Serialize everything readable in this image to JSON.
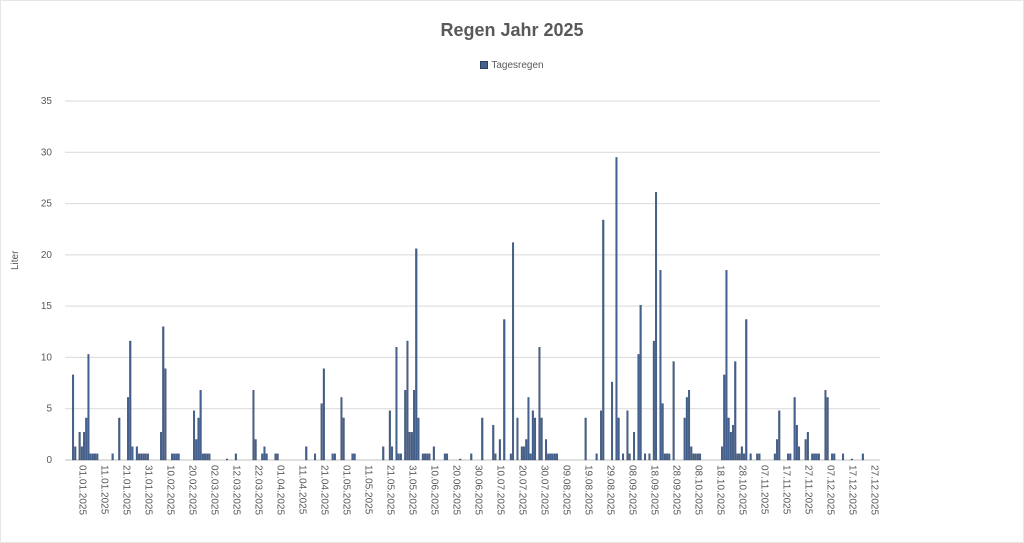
{
  "chart_data": {
    "type": "bar",
    "title": "Regen Jahr 2025",
    "year": 2025,
    "ylabel": "Liter",
    "xlabel": "",
    "ylim": [
      0,
      35
    ],
    "yticks": [
      0,
      5,
      10,
      15,
      20,
      25,
      30,
      35
    ],
    "xtick_labels": [
      "01.01.2025",
      "11.01.2025",
      "21.01.2025",
      "31.01.2025",
      "10.02.2025",
      "20.02.2025",
      "02.03.2025",
      "12.03.2025",
      "22.03.2025",
      "01.04.2025",
      "11.04.2025",
      "21.04.2025",
      "01.05.2025",
      "11.05.2025",
      "21.05.2025",
      "31.05.2025",
      "10.06.2025",
      "20.06.2025",
      "30.06.2025",
      "10.07.2025",
      "20.07.2025",
      "30.07.2025",
      "09.08.2025",
      "19.08.2025",
      "29.08.2025",
      "08.09.2025",
      "18.09.2025",
      "28.09.2025",
      "08.10.2025",
      "18.10.2025",
      "28.10.2025",
      "07.11.2025",
      "17.11.2025",
      "27.11.2025",
      "07.12.2025",
      "17.12.2025",
      "27.12.2025"
    ],
    "grid": true,
    "legend_position": "top",
    "colors": {
      "bar": "#44618f",
      "bar_border": "#2c3f60",
      "grid": "#d9d9d9"
    },
    "series": [
      {
        "name": "Tagesregen",
        "points": [
          [
            "01.01",
            8.3
          ],
          [
            "02.01",
            1.3
          ],
          [
            "04.01",
            2.7
          ],
          [
            "05.01",
            1.3
          ],
          [
            "06.01",
            2.7
          ],
          [
            "07.01",
            4.1
          ],
          [
            "08.01",
            10.3
          ],
          [
            "09.01",
            0.6
          ],
          [
            "10.01",
            0.6
          ],
          [
            "11.01",
            0.6
          ],
          [
            "12.01",
            0.6
          ],
          [
            "19.01",
            0.6
          ],
          [
            "22.01",
            4.1
          ],
          [
            "26.01",
            6.1
          ],
          [
            "27.01",
            11.6
          ],
          [
            "28.01",
            1.3
          ],
          [
            "30.01",
            1.3
          ],
          [
            "31.01",
            0.6
          ],
          [
            "01.02",
            0.6
          ],
          [
            "02.02",
            0.6
          ],
          [
            "03.02",
            0.6
          ],
          [
            "04.02",
            0.6
          ],
          [
            "10.02",
            2.7
          ],
          [
            "11.02",
            13.0
          ],
          [
            "12.02",
            8.9
          ],
          [
            "15.02",
            0.6
          ],
          [
            "16.02",
            0.6
          ],
          [
            "17.02",
            0.6
          ],
          [
            "18.02",
            0.6
          ],
          [
            "25.02",
            4.8
          ],
          [
            "26.02",
            2.0
          ],
          [
            "27.02",
            4.1
          ],
          [
            "28.02",
            6.8
          ],
          [
            "01.03",
            0.6
          ],
          [
            "02.03",
            0.6
          ],
          [
            "03.03",
            0.6
          ],
          [
            "04.03",
            0.6
          ],
          [
            "12.03",
            0.1
          ],
          [
            "16.03",
            0.6
          ],
          [
            "24.03",
            6.8
          ],
          [
            "25.03",
            2.0
          ],
          [
            "28.03",
            0.6
          ],
          [
            "29.03",
            1.3
          ],
          [
            "30.03",
            0.6
          ],
          [
            "03.04",
            0.6
          ],
          [
            "04.04",
            0.6
          ],
          [
            "17.04",
            1.3
          ],
          [
            "21.04",
            0.6
          ],
          [
            "24.04",
            5.5
          ],
          [
            "25.04",
            8.9
          ],
          [
            "29.04",
            0.6
          ],
          [
            "30.04",
            0.6
          ],
          [
            "03.05",
            6.1
          ],
          [
            "04.05",
            4.1
          ],
          [
            "08.05",
            0.6
          ],
          [
            "09.05",
            0.6
          ],
          [
            "22.05",
            1.3
          ],
          [
            "25.05",
            4.8
          ],
          [
            "26.05",
            1.3
          ],
          [
            "28.05",
            11.0
          ],
          [
            "29.05",
            0.6
          ],
          [
            "30.05",
            0.6
          ],
          [
            "01.06",
            6.8
          ],
          [
            "02.06",
            11.6
          ],
          [
            "03.06",
            2.7
          ],
          [
            "04.06",
            2.7
          ],
          [
            "05.06",
            6.8
          ],
          [
            "06.06",
            20.6
          ],
          [
            "07.06",
            4.1
          ],
          [
            "09.06",
            0.6
          ],
          [
            "10.06",
            0.6
          ],
          [
            "11.06",
            0.6
          ],
          [
            "12.06",
            0.6
          ],
          [
            "14.06",
            1.3
          ],
          [
            "19.06",
            0.6
          ],
          [
            "20.06",
            0.6
          ],
          [
            "26.06",
            0.1
          ],
          [
            "01.07",
            0.6
          ],
          [
            "06.07",
            4.1
          ],
          [
            "11.07",
            3.4
          ],
          [
            "12.07",
            0.6
          ],
          [
            "14.07",
            2.0
          ],
          [
            "16.07",
            13.7
          ],
          [
            "19.07",
            0.6
          ],
          [
            "20.07",
            21.2
          ],
          [
            "22.07",
            4.1
          ],
          [
            "24.07",
            1.3
          ],
          [
            "25.07",
            1.3
          ],
          [
            "26.07",
            2.0
          ],
          [
            "27.07",
            6.1
          ],
          [
            "28.07",
            0.6
          ],
          [
            "29.07",
            4.8
          ],
          [
            "30.07",
            4.1
          ],
          [
            "01.08",
            11.0
          ],
          [
            "02.08",
            4.1
          ],
          [
            "04.08",
            2.0
          ],
          [
            "05.08",
            0.6
          ],
          [
            "06.08",
            0.6
          ],
          [
            "07.08",
            0.6
          ],
          [
            "08.08",
            0.6
          ],
          [
            "09.08",
            0.6
          ],
          [
            "22.08",
            4.1
          ],
          [
            "27.08",
            0.6
          ],
          [
            "29.08",
            4.8
          ],
          [
            "30.08",
            23.4
          ],
          [
            "03.09",
            7.6
          ],
          [
            "05.09",
            29.5
          ],
          [
            "06.09",
            4.1
          ],
          [
            "08.09",
            0.6
          ],
          [
            "10.09",
            4.8
          ],
          [
            "11.09",
            0.6
          ],
          [
            "13.09",
            2.7
          ],
          [
            "15.09",
            10.3
          ],
          [
            "16.09",
            15.1
          ],
          [
            "18.09",
            0.6
          ],
          [
            "20.09",
            0.6
          ],
          [
            "22.09",
            11.6
          ],
          [
            "23.09",
            26.1
          ],
          [
            "25.09",
            18.5
          ],
          [
            "26.09",
            5.5
          ],
          [
            "27.09",
            0.6
          ],
          [
            "28.09",
            0.6
          ],
          [
            "29.09",
            0.6
          ],
          [
            "01.10",
            9.6
          ],
          [
            "06.10",
            4.1
          ],
          [
            "07.10",
            6.1
          ],
          [
            "08.10",
            6.8
          ],
          [
            "09.10",
            1.3
          ],
          [
            "10.10",
            0.6
          ],
          [
            "11.10",
            0.6
          ],
          [
            "12.10",
            0.6
          ],
          [
            "13.10",
            0.6
          ],
          [
            "23.10",
            1.3
          ],
          [
            "24.10",
            8.3
          ],
          [
            "25.10",
            18.5
          ],
          [
            "26.10",
            4.1
          ],
          [
            "27.10",
            2.7
          ],
          [
            "28.10",
            3.4
          ],
          [
            "29.10",
            9.6
          ],
          [
            "30.10",
            0.6
          ],
          [
            "31.10",
            0.6
          ],
          [
            "01.11",
            1.3
          ],
          [
            "02.11",
            0.6
          ],
          [
            "03.11",
            13.7
          ],
          [
            "05.11",
            0.6
          ],
          [
            "08.11",
            0.6
          ],
          [
            "09.11",
            0.6
          ],
          [
            "16.11",
            0.6
          ],
          [
            "17.11",
            2.0
          ],
          [
            "18.11",
            4.8
          ],
          [
            "22.11",
            0.6
          ],
          [
            "23.11",
            0.6
          ],
          [
            "25.11",
            6.1
          ],
          [
            "26.11",
            3.4
          ],
          [
            "27.11",
            1.3
          ],
          [
            "30.11",
            2.0
          ],
          [
            "01.12",
            2.7
          ],
          [
            "03.12",
            0.6
          ],
          [
            "04.12",
            0.6
          ],
          [
            "05.12",
            0.6
          ],
          [
            "06.12",
            0.6
          ],
          [
            "09.12",
            6.8
          ],
          [
            "10.12",
            6.1
          ],
          [
            "12.12",
            0.6
          ],
          [
            "13.12",
            0.6
          ],
          [
            "17.12",
            0.6
          ],
          [
            "21.12",
            0.1
          ],
          [
            "26.12",
            0.6
          ]
        ]
      }
    ]
  }
}
